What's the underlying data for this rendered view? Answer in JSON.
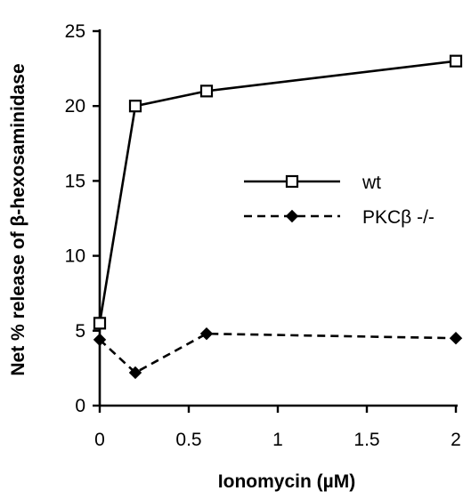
{
  "chart_data": {
    "type": "line",
    "xlabel": "Ionomycin  (µM)",
    "ylabel": "Net % release of β-hexosaminidase",
    "xlim": [
      0,
      2
    ],
    "ylim": [
      0,
      25
    ],
    "xticks": [
      0,
      0.5,
      1,
      1.5,
      2
    ],
    "xtick_labels": [
      "0",
      "0.5",
      "1",
      "1.5",
      "2"
    ],
    "yticks": [
      0,
      5,
      10,
      15,
      20,
      25
    ],
    "ytick_labels": [
      "0",
      "5",
      "10",
      "15",
      "20",
      "25"
    ],
    "grid": false,
    "legend_position": "center-right",
    "series": [
      {
        "name": "wt",
        "x": [
          0,
          0.2,
          0.6,
          2
        ],
        "y": [
          5.5,
          20,
          21,
          23
        ],
        "line_style": "solid",
        "marker": "open-square",
        "color": "#000000"
      },
      {
        "name": "PKCβ -/-",
        "x": [
          0,
          0.2,
          0.6,
          2
        ],
        "y": [
          4.4,
          2.2,
          4.8,
          4.5
        ],
        "line_style": "dashed",
        "marker": "filled-diamond",
        "color": "#000000"
      }
    ]
  }
}
